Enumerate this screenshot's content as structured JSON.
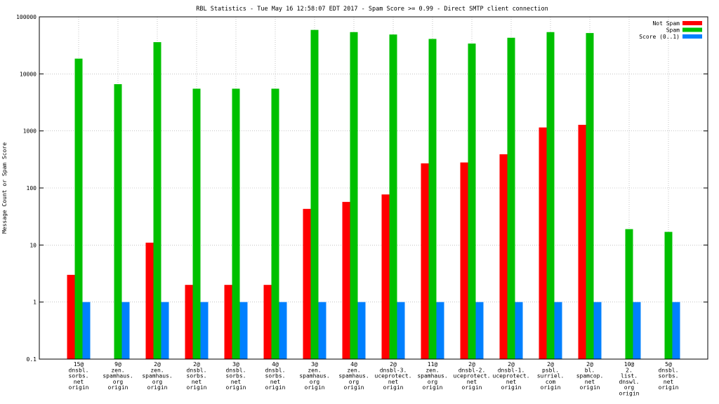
{
  "chart_data": {
    "type": "bar",
    "title": "RBL Statistics - Tue May 16 12:58:07 EDT 2017 - Spam Score >= 0.99 - Direct SMTP client connection",
    "ylabel": "Message Count or Spam Score",
    "xlabel": "",
    "yscale": "log",
    "ylim": [
      0.1,
      100000
    ],
    "yticks": [
      "0.1",
      "1",
      "10",
      "100",
      "1000",
      "10000",
      "100000"
    ],
    "grid": true,
    "legend_position": "top-right",
    "categories": [
      [
        "15@",
        "dnsbl.",
        "sorbs.",
        "net",
        "origin"
      ],
      [
        "9@",
        "zen.",
        "spamhaus.",
        "org",
        "origin"
      ],
      [
        "2@",
        "zen.",
        "spamhaus.",
        "org",
        "origin"
      ],
      [
        "2@",
        "dnsbl.",
        "sorbs.",
        "net",
        "origin"
      ],
      [
        "3@",
        "dnsbl.",
        "sorbs.",
        "net",
        "origin"
      ],
      [
        "4@",
        "dnsbl.",
        "sorbs.",
        "net",
        "origin"
      ],
      [
        "3@",
        "zen.",
        "spamhaus.",
        "org",
        "origin"
      ],
      [
        "4@",
        "zen.",
        "spamhaus.",
        "org",
        "origin"
      ],
      [
        "2@",
        "dnsbl-3.",
        "uceprotect.",
        "net",
        "origin"
      ],
      [
        "11@",
        "zen.",
        "spamhaus.",
        "org",
        "origin"
      ],
      [
        "2@",
        "dnsbl-2.",
        "uceprotect.",
        "net",
        "origin"
      ],
      [
        "2@",
        "dnsbl-1.",
        "uceprotect.",
        "net",
        "origin"
      ],
      [
        "2@",
        "psbl.",
        "surriel.",
        "com",
        "origin"
      ],
      [
        "2@",
        "bl.",
        "spamcop.",
        "net",
        "origin"
      ],
      [
        "10@",
        "2.",
        "list.",
        "dnswl.",
        "org",
        "origin"
      ],
      [
        "5@",
        "dnsbl.",
        "sorbs.",
        "net",
        "origin"
      ]
    ],
    "series": [
      {
        "name": "Not Spam",
        "color": "#ff0000",
        "values": [
          3,
          null,
          11,
          2,
          2,
          2,
          43,
          57,
          77,
          270,
          280,
          390,
          1150,
          1280,
          null,
          null
        ]
      },
      {
        "name": "Spam",
        "color": "#00c000",
        "values": [
          18500,
          6600,
          36000,
          5500,
          5500,
          5500,
          59000,
          54000,
          49000,
          41000,
          34000,
          43000,
          54000,
          52000,
          19,
          17
        ]
      },
      {
        "name": "Score (0..1)",
        "color": "#0080ff",
        "values": [
          1,
          1,
          1,
          1,
          1,
          1,
          1,
          1,
          1,
          1,
          1,
          1,
          1,
          1,
          1,
          1
        ]
      }
    ]
  }
}
